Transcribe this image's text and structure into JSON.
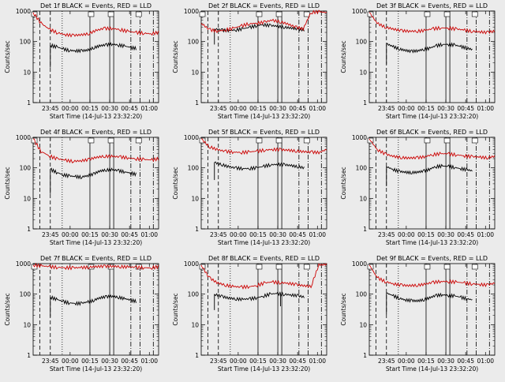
{
  "figure": {
    "background": "#ebebeb",
    "events_color": "#000000",
    "lld_color": "#cc0000",
    "xlabel": "Start Time (14-Jul-13 23:32:20)",
    "ylabel": "Counts/sec"
  },
  "chart_data": [
    {
      "type": "line",
      "title": "Det 1f BLACK = Events, RED = LLD",
      "xlabel": "Start Time (14-Jul-13 23:32:20)",
      "ylabel": "Counts/sec",
      "x_tick_labels": [
        "23:45",
        "00:00",
        "00:15",
        "00:30",
        "00:45",
        "01:00"
      ],
      "y_tick_labels": [
        "1",
        "10",
        "100",
        "1000"
      ],
      "ylim": [
        1,
        1000
      ],
      "yscale": "log",
      "x_range_minutes": [
        0,
        95
      ],
      "series": [
        {
          "name": "BLACK = Events",
          "color": "#000000",
          "start_min": 13,
          "end_min": 78,
          "values": [
            75,
            68,
            58,
            52,
            50,
            50,
            52,
            62,
            72,
            78,
            82,
            78,
            72,
            65,
            60
          ],
          "spikes": [
            {
              "x": 13,
              "y": 14
            }
          ]
        },
        {
          "name": "RED = LLD",
          "color": "#cc0000",
          "start_min": 0,
          "end_min": 95,
          "values": [
            900,
            400,
            260,
            200,
            170,
            160,
            165,
            180,
            230,
            270,
            270,
            250,
            220,
            200,
            190,
            180,
            200
          ],
          "spikes": []
        }
      ],
      "markers": {
        "dashed": [
          5,
          13
        ],
        "dotted": [
          22
        ],
        "solid": [
          43,
          58,
          61
        ],
        "dashdot": [
          74,
          81,
          91
        ]
      }
    },
    {
      "type": "line",
      "title": "Det 2f BLACK = Events, RED = LLD",
      "xlabel": "Start Time (14-Jul-13 23:32:20)",
      "ylabel": "Counts/sec",
      "x_tick_labels": [
        "23:45",
        "00:00",
        "00:15",
        "00:30",
        "00:45",
        "01:00"
      ],
      "y_tick_labels": [
        "1",
        "10",
        "100",
        "1000"
      ],
      "ylim": [
        1,
        1000
      ],
      "yscale": "log",
      "x_range_minutes": [
        0,
        95
      ],
      "series": [
        {
          "name": "BLACK = Events",
          "color": "#000000",
          "start_min": 10,
          "end_min": 78,
          "values": [
            260,
            240,
            230,
            240,
            260,
            290,
            330,
            360,
            340,
            320,
            300,
            280,
            260,
            240
          ],
          "spikes": [
            {
              "x": 10,
              "y": 80
            }
          ]
        },
        {
          "name": "RED = LLD",
          "color": "#cc0000",
          "start_min": 0,
          "end_min": 95,
          "values": [
            400,
            250,
            220,
            240,
            270,
            320,
            380,
            400,
            430,
            500,
            450,
            380,
            300,
            260,
            900,
            950,
            900
          ],
          "spikes": []
        }
      ],
      "markers": {
        "dashed": [
          5,
          13
        ],
        "dotted": [
          22
        ],
        "solid": [
          43,
          58,
          61
        ],
        "dashdot": [
          74,
          81,
          91
        ]
      }
    },
    {
      "type": "line",
      "title": "Det 3f BLACK = Events, RED = LLD",
      "xlabel": "Start Time (14-Jul-13 23:32:20)",
      "ylabel": "Counts/sec",
      "x_tick_labels": [
        "23:45",
        "00:00",
        "00:15",
        "00:30",
        "00:45",
        "01:00"
      ],
      "y_tick_labels": [
        "1",
        "10",
        "100",
        "1000"
      ],
      "ylim": [
        1,
        1000
      ],
      "yscale": "log",
      "x_range_minutes": [
        0,
        95
      ],
      "series": [
        {
          "name": "BLACK = Events",
          "color": "#000000",
          "start_min": 13,
          "end_min": 78,
          "values": [
            85,
            70,
            58,
            52,
            48,
            50,
            55,
            60,
            72,
            80,
            82,
            78,
            70,
            62,
            55
          ],
          "spikes": [
            {
              "x": 13,
              "y": 18
            }
          ]
        },
        {
          "name": "RED = LLD",
          "color": "#cc0000",
          "start_min": 0,
          "end_min": 95,
          "values": [
            900,
            400,
            300,
            260,
            230,
            220,
            220,
            230,
            260,
            280,
            280,
            260,
            240,
            220,
            210,
            200,
            220
          ],
          "spikes": []
        }
      ],
      "markers": {
        "dashed": [
          5,
          13
        ],
        "dotted": [
          22
        ],
        "solid": [
          43,
          58,
          61
        ],
        "dashdot": [
          74,
          81,
          91
        ]
      }
    },
    {
      "type": "line",
      "title": "Det 4f BLACK = Events, RED = LLD",
      "xlabel": "Start Time (14-Jul-13 23:32:20)",
      "ylabel": "Counts/sec",
      "x_tick_labels": [
        "23:45",
        "00:00",
        "00:15",
        "00:30",
        "00:45",
        "01:00"
      ],
      "y_tick_labels": [
        "1",
        "10",
        "100",
        "1000"
      ],
      "ylim": [
        1,
        1000
      ],
      "yscale": "log",
      "x_range_minutes": [
        0,
        95
      ],
      "series": [
        {
          "name": "BLACK = Events",
          "color": "#000000",
          "start_min": 13,
          "end_min": 78,
          "values": [
            90,
            72,
            60,
            55,
            52,
            50,
            55,
            62,
            78,
            85,
            88,
            82,
            75,
            68,
            62
          ],
          "spikes": [
            {
              "x": 13,
              "y": 14
            }
          ]
        },
        {
          "name": "RED = LLD",
          "color": "#cc0000",
          "start_min": 0,
          "end_min": 95,
          "values": [
            900,
            350,
            250,
            200,
            180,
            165,
            170,
            185,
            220,
            240,
            240,
            230,
            215,
            200,
            190,
            180,
            200
          ],
          "spikes": []
        }
      ],
      "markers": {
        "dashed": [
          5,
          13
        ],
        "dotted": [
          22
        ],
        "solid": [
          43,
          58,
          61
        ],
        "dashdot": [
          74,
          81,
          91
        ]
      }
    },
    {
      "type": "line",
      "title": "Det 5f BLACK = Events, RED = LLD",
      "xlabel": "Start Time (14-Jul-13 23:32:20)",
      "ylabel": "Counts/sec",
      "x_tick_labels": [
        "23:45",
        "00:00",
        "00:15",
        "00:30",
        "00:45",
        "01:00"
      ],
      "y_tick_labels": [
        "1",
        "10",
        "100",
        "1000"
      ],
      "ylim": [
        1,
        1000
      ],
      "yscale": "log",
      "x_range_minutes": [
        0,
        95
      ],
      "series": [
        {
          "name": "BLACK = Events",
          "color": "#000000",
          "start_min": 10,
          "end_min": 78,
          "values": [
            150,
            130,
            110,
            100,
            95,
            95,
            100,
            110,
            125,
            130,
            128,
            120,
            110,
            100
          ],
          "spikes": [
            {
              "x": 10,
              "y": 40
            }
          ]
        },
        {
          "name": "RED = LLD",
          "color": "#cc0000",
          "start_min": 0,
          "end_min": 95,
          "values": [
            900,
            500,
            400,
            350,
            330,
            320,
            330,
            350,
            380,
            400,
            400,
            380,
            360,
            340,
            330,
            320,
            400
          ],
          "spikes": []
        }
      ],
      "markers": {
        "dashed": [
          5,
          13
        ],
        "dotted": [
          22
        ],
        "solid": [
          43,
          58,
          61
        ],
        "dashdot": [
          74,
          81,
          91
        ]
      }
    },
    {
      "type": "line",
      "title": "Det 6f BLACK = Events, RED = LLD",
      "xlabel": "Start Time (14-Jul-13 23:32:20)",
      "ylabel": "Counts/sec",
      "x_tick_labels": [
        "23:45",
        "00:00",
        "00:15",
        "00:30",
        "00:45",
        "01:00"
      ],
      "y_tick_labels": [
        "1",
        "10",
        "100",
        "1000"
      ],
      "ylim": [
        1,
        1000
      ],
      "yscale": "log",
      "x_range_minutes": [
        0,
        95
      ],
      "series": [
        {
          "name": "BLACK = Events",
          "color": "#000000",
          "start_min": 13,
          "end_min": 78,
          "values": [
            110,
            90,
            78,
            72,
            70,
            72,
            78,
            90,
            110,
            115,
            112,
            105,
            95,
            88,
            80
          ],
          "spikes": [
            {
              "x": 13,
              "y": 25
            }
          ]
        },
        {
          "name": "RED = LLD",
          "color": "#cc0000",
          "start_min": 0,
          "end_min": 95,
          "values": [
            900,
            400,
            290,
            240,
            220,
            210,
            215,
            230,
            270,
            290,
            290,
            270,
            250,
            235,
            225,
            215,
            240
          ],
          "spikes": []
        }
      ],
      "markers": {
        "dashed": [
          5,
          13
        ],
        "dotted": [
          22
        ],
        "solid": [
          43,
          58,
          61
        ],
        "dashdot": [
          74,
          81,
          91
        ]
      }
    },
    {
      "type": "line",
      "title": "Det 7f BLACK = Events, RED = LLD",
      "xlabel": "Start Time (14-Jul-13 23:32:20)",
      "ylabel": "Counts/sec",
      "x_tick_labels": [
        "23:45",
        "00:00",
        "00:15",
        "00:30",
        "00:45",
        "01:00"
      ],
      "y_tick_labels": [
        "1",
        "10",
        "100",
        "1000"
      ],
      "ylim": [
        1,
        1000
      ],
      "yscale": "log",
      "x_range_minutes": [
        0,
        95
      ],
      "series": [
        {
          "name": "BLACK = Events",
          "color": "#000000",
          "start_min": 13,
          "end_min": 78,
          "values": [
            80,
            68,
            58,
            52,
            50,
            50,
            55,
            62,
            75,
            82,
            85,
            80,
            72,
            65,
            58
          ],
          "spikes": [
            {
              "x": 13,
              "y": 18
            }
          ]
        },
        {
          "name": "RED = LLD",
          "color": "#cc0000",
          "start_min": 0,
          "end_min": 95,
          "values": [
            900,
            850,
            800,
            760,
            740,
            730,
            740,
            760,
            800,
            820,
            820,
            800,
            780,
            760,
            740,
            720,
            800
          ],
          "spikes": []
        }
      ],
      "markers": {
        "dashed": [
          5,
          13
        ],
        "dotted": [
          22
        ],
        "solid": [
          43,
          58,
          61
        ],
        "dashdot": [
          74,
          81,
          91
        ]
      }
    },
    {
      "type": "line",
      "title": "Det 8f BLACK = Events, RED = LLD",
      "xlabel": "Start Time (14-Jul-13 23:32:20)",
      "ylabel": "Counts/sec",
      "x_tick_labels": [
        "23:45",
        "00:00",
        "00:15",
        "00:30",
        "00:45",
        "01:00"
      ],
      "y_tick_labels": [
        "1",
        "10",
        "100",
        "1000"
      ],
      "ylim": [
        1,
        1000
      ],
      "yscale": "log",
      "x_range_minutes": [
        0,
        95
      ],
      "series": [
        {
          "name": "BLACK = Events",
          "color": "#000000",
          "start_min": 10,
          "end_min": 78,
          "values": [
            100,
            85,
            75,
            70,
            68,
            70,
            75,
            85,
            100,
            105,
            100,
            95,
            90,
            80
          ],
          "spikes": [
            {
              "x": 10,
              "y": 30
            },
            {
              "x": 60,
              "y": 40
            }
          ]
        },
        {
          "name": "RED = LLD",
          "color": "#cc0000",
          "start_min": 0,
          "end_min": 95,
          "values": [
            900,
            350,
            240,
            200,
            180,
            170,
            175,
            190,
            230,
            250,
            240,
            230,
            210,
            190,
            180,
            900,
            950
          ],
          "spikes": []
        }
      ],
      "markers": {
        "dashed": [
          5,
          13
        ],
        "dotted": [
          22
        ],
        "solid": [
          43,
          58,
          61
        ],
        "dashdot": [
          74,
          81,
          91
        ]
      }
    },
    {
      "type": "line",
      "title": "Det 9f BLACK = Events, RED = LLD",
      "xlabel": "Start Time (14-Jul-13 23:32:20)",
      "ylabel": "Counts/sec",
      "x_tick_labels": [
        "23:45",
        "00:00",
        "00:15",
        "00:30",
        "00:45",
        "01:00"
      ],
      "y_tick_labels": [
        "1",
        "10",
        "100",
        "1000"
      ],
      "ylim": [
        1,
        1000
      ],
      "yscale": "log",
      "x_range_minutes": [
        0,
        95
      ],
      "series": [
        {
          "name": "BLACK = Events",
          "color": "#000000",
          "start_min": 13,
          "end_min": 78,
          "values": [
            110,
            90,
            75,
            65,
            62,
            60,
            65,
            75,
            90,
            95,
            92,
            88,
            80,
            72,
            65
          ],
          "spikes": [
            {
              "x": 13,
              "y": 22
            }
          ]
        },
        {
          "name": "RED = LLD",
          "color": "#cc0000",
          "start_min": 0,
          "end_min": 95,
          "values": [
            900,
            350,
            260,
            220,
            200,
            190,
            195,
            210,
            240,
            260,
            260,
            250,
            235,
            220,
            210,
            200,
            230
          ],
          "spikes": []
        }
      ],
      "markers": {
        "dashed": [
          5,
          13
        ],
        "dotted": [
          22
        ],
        "solid": [
          43,
          58,
          61
        ],
        "dashdot": [
          74,
          81,
          91
        ]
      }
    }
  ]
}
